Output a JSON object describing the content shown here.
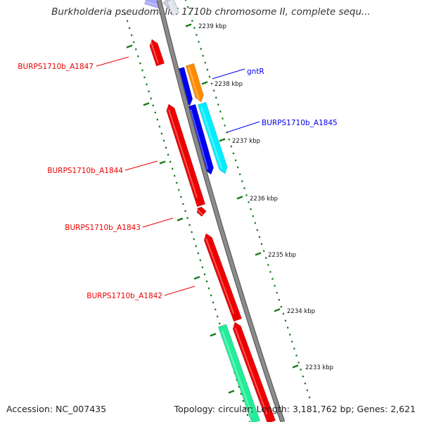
{
  "title": "Burkholderia pseudomallei 1710b chromosome II, complete sequ...",
  "footer": {
    "accession": "Accession: NC_007435",
    "summary": "Topology: circular; Length: 3,181,762 bp; Genes: 2,621"
  },
  "colors": {
    "backbone": "#8c8c8c",
    "forward_gene": "#0000ee",
    "reverse_gene": "#ee0000",
    "orange_gene": "#ff8c00",
    "cyan_gene": "#00eeff",
    "green_gene": "#22ee99",
    "tick": "#1a7a1a"
  },
  "ticks": [
    {
      "label": "2239 kbp"
    },
    {
      "label": "2238 kbp"
    },
    {
      "label": "2237 kbp"
    },
    {
      "label": "2236 kbp"
    },
    {
      "label": "2235 kbp"
    },
    {
      "label": "2234 kbp"
    },
    {
      "label": "2233 kbp"
    }
  ],
  "gene_labels": [
    {
      "name": "gntR",
      "strand": "forward"
    },
    {
      "name": "BURPS1710b_A1845",
      "strand": "forward"
    },
    {
      "name": "BURPS1710b_A1847",
      "strand": "reverse"
    },
    {
      "name": "BURPS1710b_A1844",
      "strand": "reverse"
    },
    {
      "name": "BURPS1710b_A1843",
      "strand": "reverse"
    },
    {
      "name": "BURPS1710b_A1842",
      "strand": "reverse"
    }
  ]
}
